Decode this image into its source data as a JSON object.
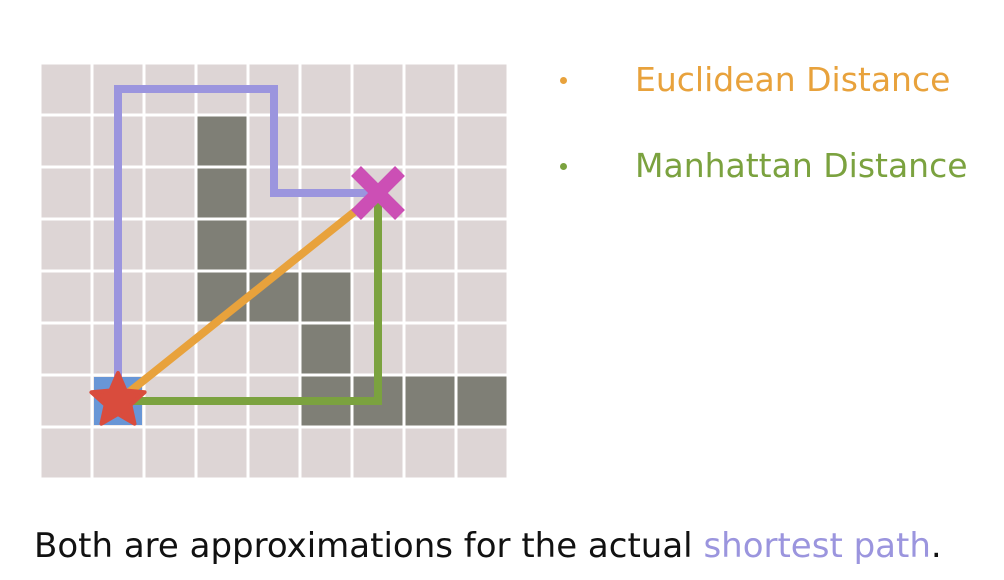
{
  "legend": {
    "items": [
      {
        "label": "Euclidean Distance",
        "color": "#E8A23C"
      },
      {
        "label": "Manhattan Distance",
        "color": "#7BA23F"
      }
    ]
  },
  "caption": {
    "prefix": "Both are approximations for the actual ",
    "highlight": "shortest path",
    "suffix": ".",
    "highlight_color": "#9B95DE"
  },
  "diagram": {
    "grid_cols": 9,
    "grid_rows": 8,
    "cell_color": "#DDD5D5",
    "gridline_color": "#FFFFFF",
    "obstacle_color": "#7F7F76",
    "obstacle_cells": [
      [
        3,
        1
      ],
      [
        3,
        2
      ],
      [
        3,
        3
      ],
      [
        3,
        4
      ],
      [
        4,
        4
      ],
      [
        5,
        4
      ],
      [
        5,
        5
      ],
      [
        5,
        6
      ],
      [
        6,
        6
      ],
      [
        7,
        6
      ],
      [
        8,
        6
      ]
    ],
    "start": {
      "col": 1,
      "row": 6,
      "icon": "star-icon",
      "color": "#D94C3D"
    },
    "goal": {
      "col": 6,
      "row": 2,
      "icon": "x-icon",
      "color": "#CC4FB5"
    },
    "paths": {
      "shortest": {
        "color": "#9B95DE",
        "points": [
          [
            1,
            6
          ],
          [
            1,
            0
          ],
          [
            4,
            0
          ],
          [
            4,
            2
          ],
          [
            6,
            2
          ]
        ]
      },
      "euclidean": {
        "color": "#E8A23C",
        "points": [
          [
            1,
            6
          ],
          [
            6,
            2
          ]
        ]
      },
      "manhattan": {
        "color": "#7BA23F",
        "points": [
          [
            1,
            6
          ],
          [
            6,
            6
          ],
          [
            6,
            2
          ]
        ]
      }
    }
  }
}
